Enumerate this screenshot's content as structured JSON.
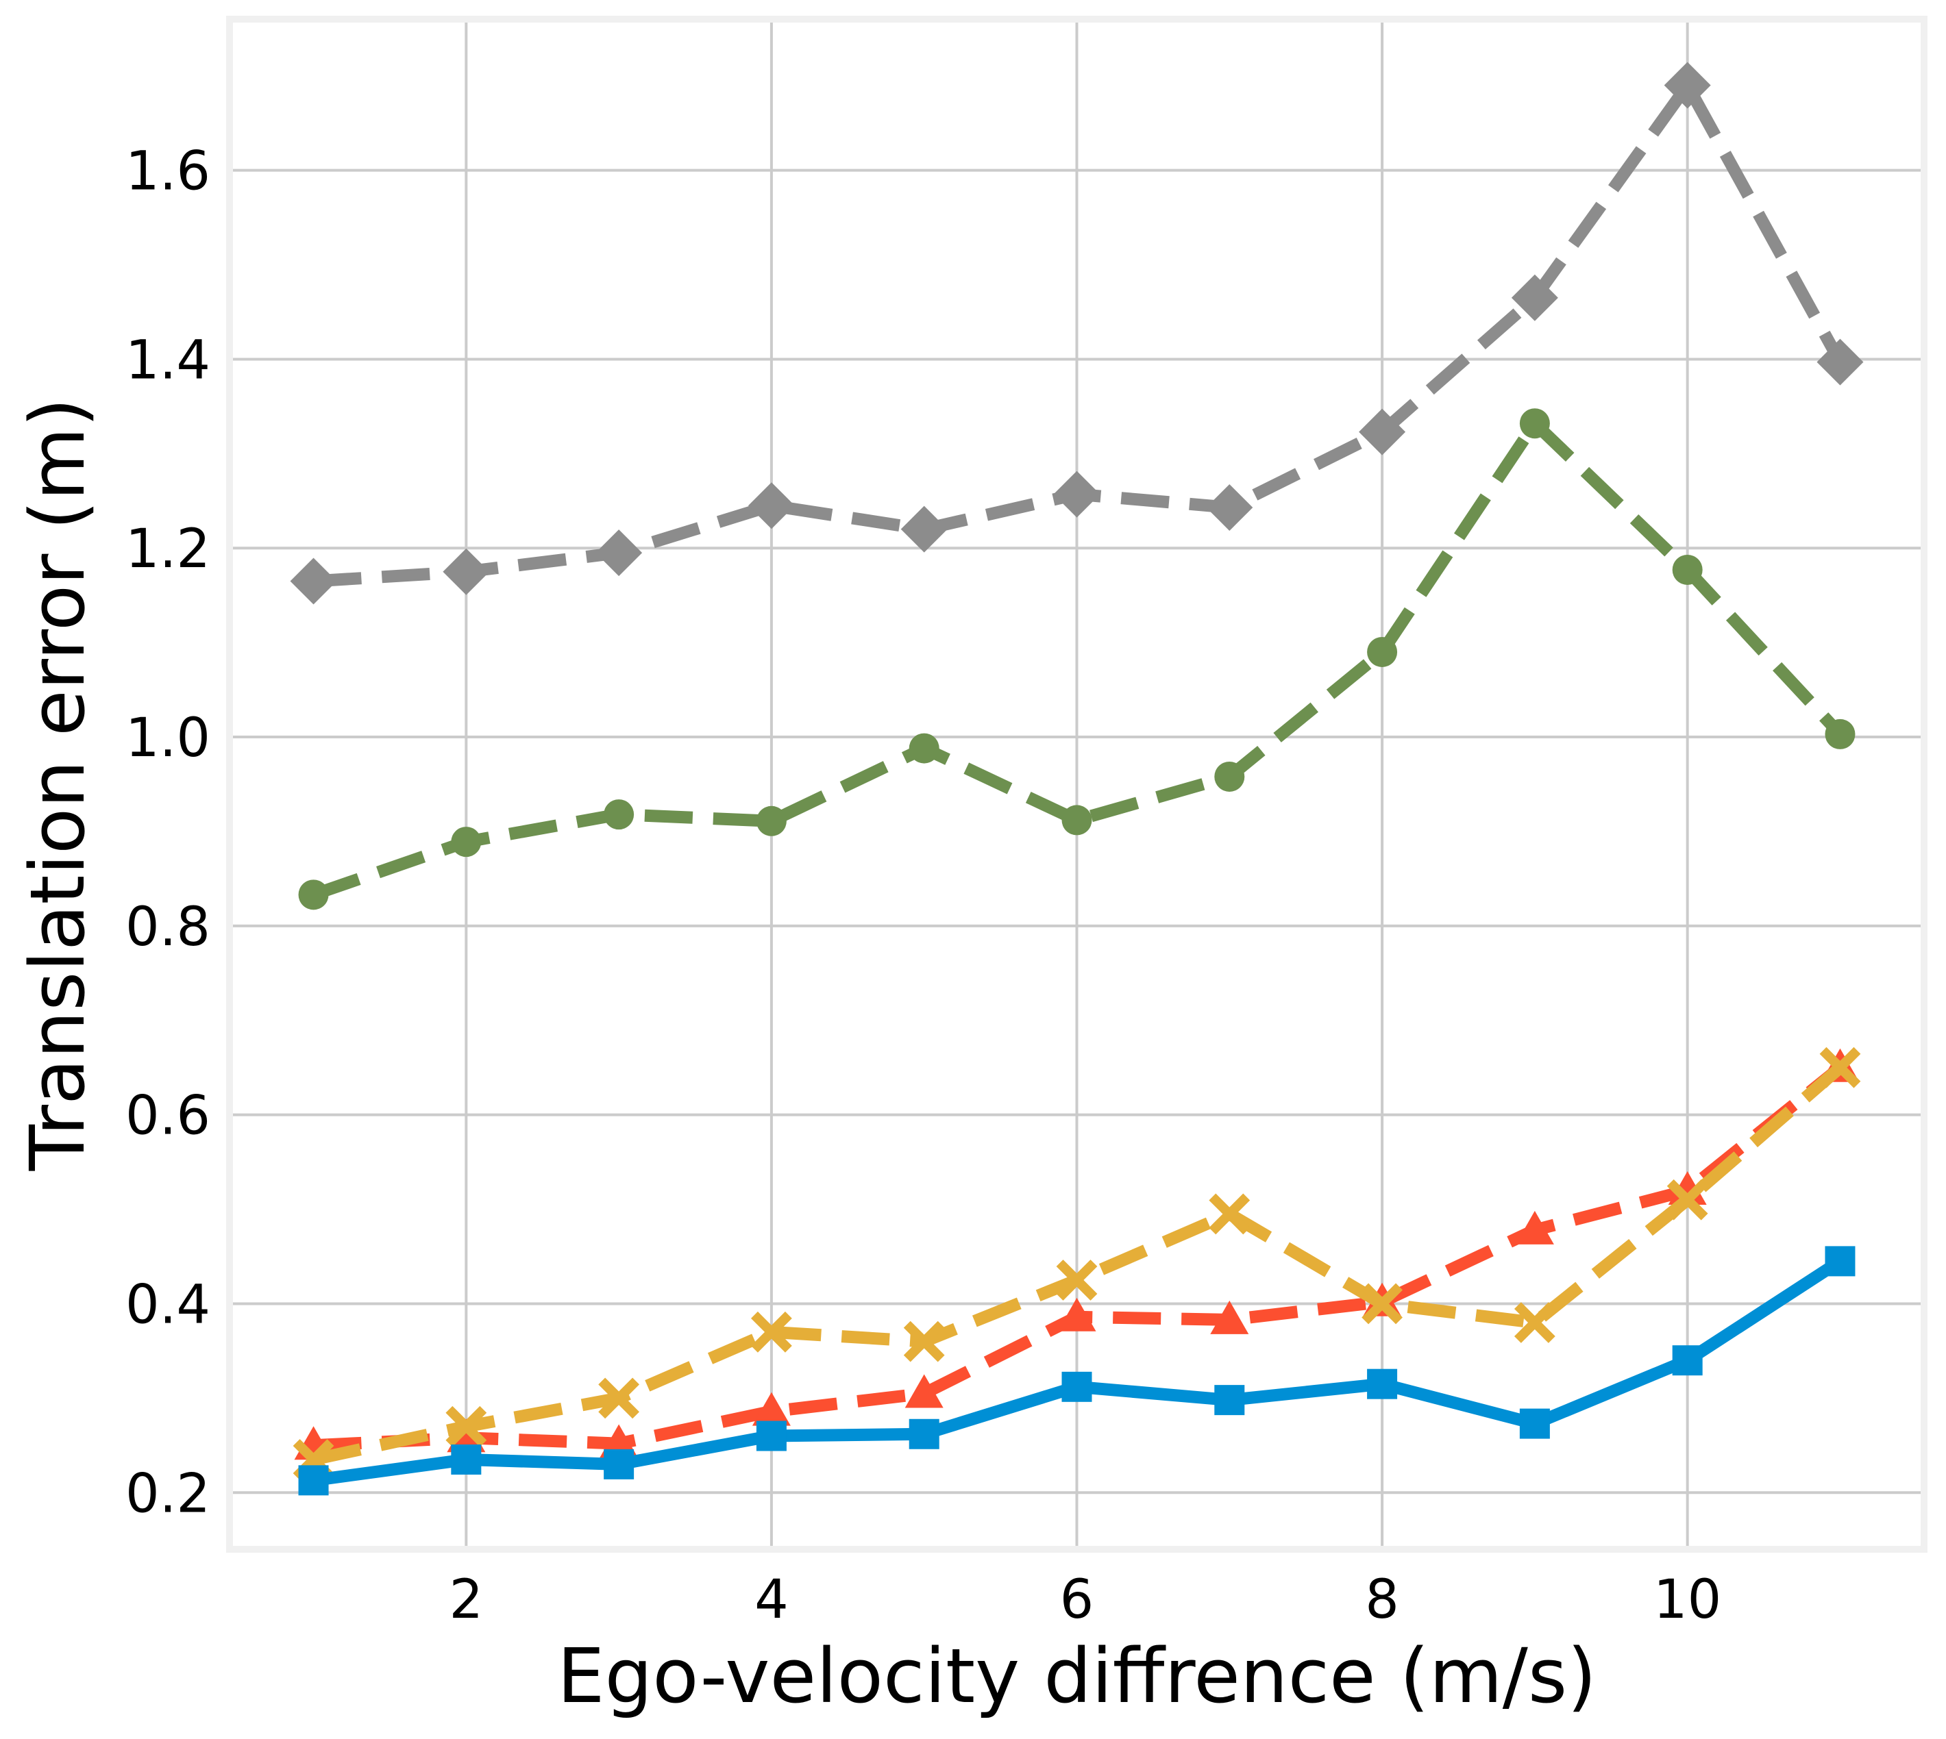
{
  "chart_data": {
    "type": "line",
    "xlabel": "Ego-velocity diffrence (m/s)",
    "ylabel": "Translation error (m)",
    "xlim": [
      0.45,
      11.55
    ],
    "ylim": [
      0.14,
      1.76
    ],
    "xticks": [
      2,
      4,
      6,
      8,
      10
    ],
    "yticks": [
      0.2,
      0.4,
      0.6,
      0.8,
      1.0,
      1.2,
      1.4,
      1.6
    ],
    "grid": true,
    "x": [
      1,
      2,
      3,
      4,
      5,
      6,
      7,
      8,
      9,
      10,
      11
    ],
    "series": [
      {
        "color": "#8c8c8c",
        "linestyle": "dashed",
        "marker": "diamond",
        "values": [
          1.165,
          1.175,
          1.195,
          1.245,
          1.22,
          1.257,
          1.243,
          1.323,
          1.465,
          1.69,
          1.397
        ]
      },
      {
        "color": "#6d904f",
        "linestyle": "dashed",
        "marker": "circle",
        "values": [
          0.833,
          0.889,
          0.918,
          0.911,
          0.988,
          0.912,
          0.958,
          1.09,
          1.332,
          1.177,
          1.003
        ]
      },
      {
        "color": "#fc4f30",
        "linestyle": "dashed",
        "marker": "triangle",
        "values": [
          0.25,
          0.258,
          0.252,
          0.286,
          0.305,
          0.386,
          0.383,
          0.402,
          0.478,
          0.52,
          0.65
        ]
      },
      {
        "color": "#e5ae38",
        "linestyle": "dashed",
        "marker": "x",
        "values": [
          0.235,
          0.27,
          0.3,
          0.37,
          0.36,
          0.425,
          0.495,
          0.4,
          0.38,
          0.51,
          0.65
        ]
      },
      {
        "color": "#008fd5",
        "linestyle": "solid",
        "marker": "square",
        "values": [
          0.213,
          0.235,
          0.23,
          0.26,
          0.262,
          0.312,
          0.298,
          0.315,
          0.273,
          0.34,
          0.445
        ]
      }
    ]
  }
}
